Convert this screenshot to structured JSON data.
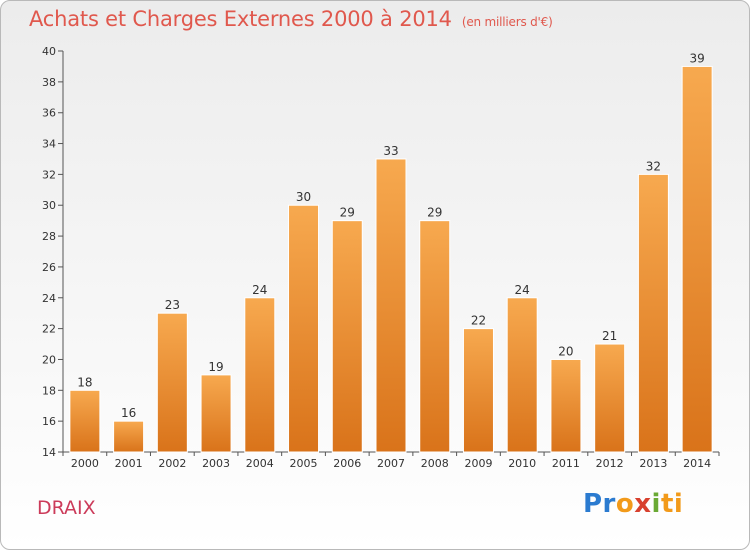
{
  "title": "Achats et Charges Externes 2000 à 2014",
  "subtitle": "(en milliers d'€)",
  "commune": "DRAIX",
  "logo": {
    "p1": "Pr",
    "p2": "o",
    "p3": "x",
    "p4": "i",
    "p5": "ti"
  },
  "colors": {
    "bar_top": "#f7a94f",
    "bar_bottom": "#d9731a",
    "title": "#e0584d",
    "commune": "#cc3b5a"
  },
  "chart_data": {
    "type": "bar",
    "title": "Achats et Charges Externes 2000 à 2014",
    "subtitle": "(en milliers d'€)",
    "categories": [
      "2000",
      "2001",
      "2002",
      "2003",
      "2004",
      "2005",
      "2006",
      "2007",
      "2008",
      "2009",
      "2010",
      "2011",
      "2012",
      "2013",
      "2014"
    ],
    "values": [
      18,
      16,
      23,
      19,
      24,
      30,
      29,
      33,
      29,
      22,
      24,
      20,
      21,
      32,
      39
    ],
    "ylim": [
      14,
      40
    ],
    "yticks": [
      14,
      16,
      18,
      20,
      22,
      24,
      26,
      28,
      30,
      32,
      34,
      36,
      38,
      40
    ],
    "grid": false,
    "data_labels": true
  }
}
